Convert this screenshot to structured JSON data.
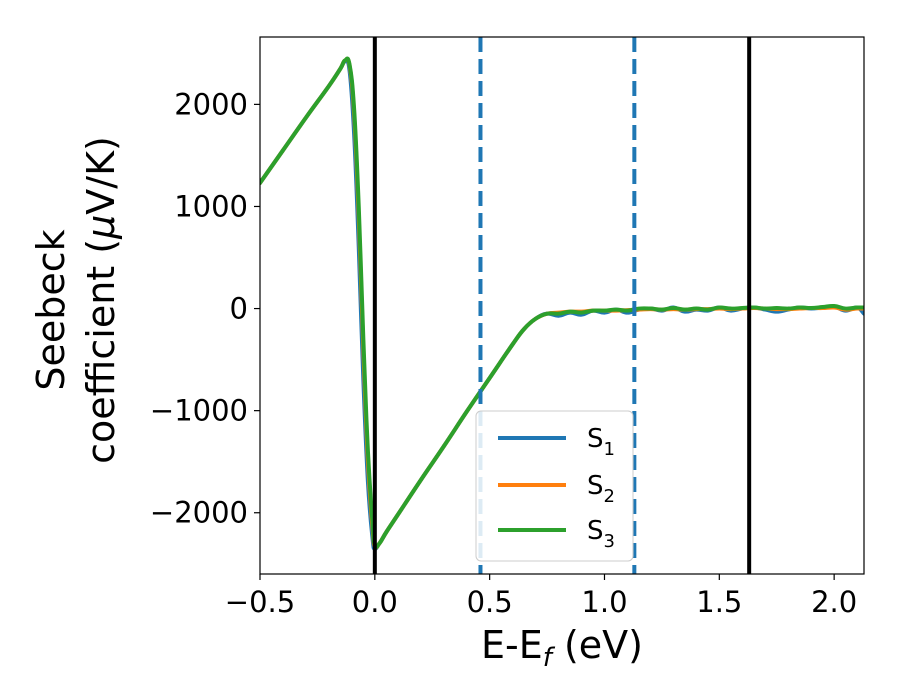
{
  "chart_data": {
    "type": "line",
    "xlabel": {
      "main": "E-E",
      "sub": "f",
      "tail": " (eV)"
    },
    "ylabel": {
      "line1": "Seebeck",
      "line2a": "coefficient  (",
      "line2mu": "μ",
      "line2b": "V/K)"
    },
    "xlim": [
      -0.5,
      2.13
    ],
    "ylim": [
      -2600,
      2660
    ],
    "xticks": [
      -0.5,
      0.0,
      0.5,
      1.0,
      1.5,
      2.0
    ],
    "xtick_labels": [
      "−0.5",
      "0.0",
      "0.5",
      "1.0",
      "1.5",
      "2.0"
    ],
    "yticks": [
      -2000,
      -1000,
      0,
      1000,
      2000
    ],
    "ytick_labels": [
      "−2000",
      "−1000",
      "0",
      "1000",
      "2000"
    ],
    "vlines_solid": [
      0.0,
      1.63
    ],
    "vlines_dashed": [
      0.46,
      1.13
    ],
    "legend_position": "lower-center",
    "series": [
      {
        "name": "S",
        "sub": "1",
        "color": "#1f77b4",
        "x": [
          -0.5,
          -0.4,
          -0.3,
          -0.2,
          -0.15,
          -0.13,
          -0.11,
          -0.09,
          -0.07,
          -0.05,
          -0.03,
          -0.01,
          0.0,
          0.02,
          0.05,
          0.1,
          0.2,
          0.3,
          0.4,
          0.5,
          0.6,
          0.65,
          0.7,
          0.75,
          0.8,
          0.85,
          0.9,
          0.95,
          1.0,
          1.05,
          1.1,
          1.15,
          1.2,
          1.25,
          1.3,
          1.35,
          1.4,
          1.45,
          1.5,
          1.55,
          1.6,
          1.65,
          1.7,
          1.75,
          1.8,
          1.85,
          1.9,
          1.95,
          2.0,
          2.05,
          2.1,
          2.13
        ],
        "y": [
          1230,
          1550,
          1870,
          2180,
          2350,
          2420,
          2330,
          1700,
          600,
          -700,
          -1700,
          -2250,
          -2350,
          -2300,
          -2190,
          -2020,
          -1680,
          -1350,
          -1010,
          -680,
          -350,
          -200,
          -100,
          -50,
          -70,
          -40,
          -60,
          -20,
          -40,
          -10,
          -40,
          -10,
          0,
          -20,
          10,
          -30,
          -10,
          -20,
          10,
          -20,
          0,
          10,
          -10,
          -30,
          -10,
          10,
          0,
          10,
          20,
          -20,
          10,
          -50
        ]
      },
      {
        "name": "S",
        "sub": "2",
        "color": "#ff7f0e",
        "x": [
          -0.5,
          -0.4,
          -0.3,
          -0.2,
          -0.15,
          -0.13,
          -0.11,
          -0.09,
          -0.07,
          -0.05,
          -0.03,
          -0.01,
          0.0,
          0.02,
          0.05,
          0.1,
          0.2,
          0.3,
          0.4,
          0.5,
          0.6,
          0.65,
          0.7,
          0.75,
          0.8,
          0.85,
          0.9,
          0.95,
          1.0,
          1.05,
          1.1,
          1.15,
          1.2,
          1.25,
          1.3,
          1.35,
          1.4,
          1.45,
          1.5,
          1.55,
          1.6,
          1.65,
          1.7,
          1.75,
          1.8,
          1.85,
          1.9,
          1.95,
          2.0,
          2.05,
          2.1,
          2.13
        ],
        "y": [
          1230,
          1550,
          1870,
          2180,
          2350,
          2430,
          2380,
          1900,
          900,
          -400,
          -1500,
          -2150,
          -2330,
          -2300,
          -2190,
          -2020,
          -1680,
          -1350,
          -1010,
          -680,
          -350,
          -200,
          -100,
          -50,
          -40,
          -30,
          -30,
          -20,
          -20,
          -20,
          -15,
          -10,
          -5,
          -10,
          -5,
          -10,
          -5,
          -5,
          0,
          -5,
          0,
          5,
          0,
          -5,
          -5,
          0,
          5,
          5,
          10,
          -10,
          0,
          0
        ]
      },
      {
        "name": "S",
        "sub": "3",
        "color": "#2ca02c",
        "x": [
          -0.5,
          -0.4,
          -0.3,
          -0.2,
          -0.15,
          -0.13,
          -0.11,
          -0.09,
          -0.07,
          -0.05,
          -0.03,
          -0.01,
          0.0,
          0.02,
          0.05,
          0.1,
          0.2,
          0.3,
          0.4,
          0.5,
          0.6,
          0.65,
          0.7,
          0.75,
          0.8,
          0.85,
          0.9,
          0.95,
          1.0,
          1.05,
          1.1,
          1.15,
          1.2,
          1.25,
          1.3,
          1.35,
          1.4,
          1.45,
          1.5,
          1.55,
          1.6,
          1.65,
          1.7,
          1.75,
          1.8,
          1.85,
          1.9,
          1.95,
          2.0,
          2.05,
          2.1,
          2.13
        ],
        "y": [
          1230,
          1550,
          1870,
          2180,
          2350,
          2430,
          2390,
          1950,
          1000,
          -300,
          -1400,
          -2100,
          -2320,
          -2300,
          -2190,
          -2020,
          -1680,
          -1350,
          -1010,
          -680,
          -350,
          -200,
          -100,
          -50,
          -50,
          -30,
          -40,
          -20,
          -20,
          -10,
          -20,
          0,
          0,
          -10,
          5,
          -10,
          0,
          -10,
          10,
          0,
          5,
          10,
          0,
          5,
          0,
          10,
          5,
          15,
          25,
          0,
          10,
          10
        ]
      }
    ]
  }
}
